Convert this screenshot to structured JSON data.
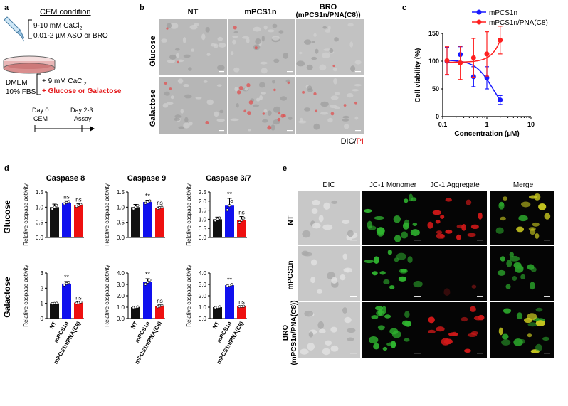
{
  "panel_letters": {
    "a": "a",
    "b": "b",
    "c": "c",
    "d": "d",
    "e": "e"
  },
  "panel_a": {
    "condition_title": "CEM condition",
    "cacl2": "9-10 mM CaCl",
    "cacl2_sub": "2",
    "aso": "0.01-2 µM ASO or BRO",
    "dmem": "DMEM",
    "fbs": "10% FBS",
    "plus_cacl2": "+ 9 mM CaCl",
    "plus_cacl2_sub": "2",
    "plus_sugar": "+ Glucose or Galactose",
    "day0": "Day 0",
    "day0_sub": "CEM",
    "day23": "Day 2-3",
    "day23_sub": "Assay",
    "colors": {
      "red": "#e31a1c"
    }
  },
  "panel_b": {
    "cols": [
      "NT",
      "mPCS1n",
      "BRO"
    ],
    "col3_sub": "(mPCS1n/PNA(C8))",
    "rows": [
      "Glucose",
      "Galactose"
    ],
    "legend_dic": "DIC/",
    "legend_pi": "PI"
  },
  "chart_data": [
    {
      "type": "line",
      "panel": "c",
      "xlabel": "Concentration (µM)",
      "ylabel": "Cell viability (%)",
      "xscale": "log",
      "xlim": [
        0.1,
        10
      ],
      "ylim": [
        0,
        150
      ],
      "xticks": [
        "0.1",
        "1",
        "10"
      ],
      "yticks": [
        "0",
        "50",
        "100",
        "150"
      ],
      "legend_placement": "top",
      "series": [
        {
          "name": "mPCS1n",
          "color": "#1a1aff",
          "x": [
            0.125,
            0.25,
            0.5,
            1,
            2
          ],
          "y": [
            100,
            112,
            72,
            70,
            30
          ],
          "err": [
            25,
            14,
            18,
            20,
            8
          ]
        },
        {
          "name": "mPCS1n/PNA(C8)",
          "color": "#ff2020",
          "x": [
            0.125,
            0.25,
            0.5,
            1,
            2
          ],
          "y": [
            101,
            97,
            106,
            113,
            138
          ],
          "err": [
            25,
            30,
            35,
            40,
            25
          ]
        }
      ]
    },
    {
      "type": "bar",
      "panel": "d",
      "row": "Glucose",
      "title": "Caspase 8",
      "categories": [
        "NT",
        "mPCS1n",
        "mPCS1n/PNA(C8)"
      ],
      "values": [
        1.0,
        1.15,
        1.06
      ],
      "err": [
        0.1,
        0.06,
        0.05
      ],
      "sig": [
        "",
        "ns",
        "ns"
      ],
      "ylim": [
        0,
        1.5
      ],
      "yticks": [
        "0.0",
        "0.5",
        "1.0",
        "1.5"
      ],
      "ylabel": "Relative caspase activity"
    },
    {
      "type": "bar",
      "panel": "d",
      "row": "Glucose",
      "title": "Caspase 9",
      "categories": [
        "NT",
        "mPCS1n",
        "mPCS1n/PNA(C8)"
      ],
      "values": [
        1.0,
        1.17,
        0.98
      ],
      "err": [
        0.09,
        0.06,
        0.03
      ],
      "sig": [
        "",
        "**",
        "ns"
      ],
      "ylim": [
        0,
        1.5
      ],
      "yticks": [
        "0.0",
        "0.5",
        "1.0",
        "1.5"
      ],
      "ylabel": "Relative caspase activity"
    },
    {
      "type": "bar",
      "panel": "d",
      "row": "Glucose",
      "title": "Caspase 3/7",
      "categories": [
        "NT",
        "mPCS1n",
        "mPCS1n/PNA(C8)"
      ],
      "values": [
        1.0,
        1.75,
        0.95
      ],
      "err": [
        0.12,
        0.4,
        0.2
      ],
      "sig": [
        "",
        "**",
        "ns"
      ],
      "ylim": [
        0,
        2.5
      ],
      "yticks": [
        "0.0",
        "0.5",
        "1.0",
        "1.5",
        "2.0",
        "2.5"
      ],
      "ylabel": "Relative caspase activity"
    },
    {
      "type": "bar",
      "panel": "d",
      "row": "Galactose",
      "title": "",
      "categories": [
        "NT",
        "mPCS1n",
        "mPCS1n/PNA(C8)"
      ],
      "values": [
        1.0,
        2.3,
        1.05
      ],
      "err": [
        0.02,
        0.14,
        0.06
      ],
      "sig": [
        "",
        "**",
        "ns"
      ],
      "ylim": [
        0,
        3
      ],
      "yticks": [
        "0",
        "1",
        "2",
        "3"
      ],
      "ylabel": "Relative caspase activity"
    },
    {
      "type": "bar",
      "panel": "d",
      "row": "Galactose",
      "title": "",
      "categories": [
        "NT",
        "mPCS1n",
        "mPCS1n/PNA(C8)"
      ],
      "values": [
        1.0,
        3.2,
        1.1
      ],
      "err": [
        0.05,
        0.3,
        0.1
      ],
      "sig": [
        "",
        "**",
        "ns"
      ],
      "ylim": [
        0,
        4
      ],
      "yticks": [
        "0.0",
        "1.0",
        "2.0",
        "3.0",
        "4.0"
      ],
      "ylabel": "Relative caspase activity"
    },
    {
      "type": "bar",
      "panel": "d",
      "row": "Galactose",
      "title": "",
      "categories": [
        "NT",
        "mPCS1n",
        "mPCS1n/PNA(C8)"
      ],
      "values": [
        1.0,
        2.93,
        1.07
      ],
      "err": [
        0.06,
        0.1,
        0.03
      ],
      "sig": [
        "",
        "**",
        "ns"
      ],
      "ylim": [
        0,
        4
      ],
      "yticks": [
        "0.0",
        "1.0",
        "2.0",
        "3.0",
        "4.0"
      ],
      "ylabel": "Relative caspase activity"
    }
  ],
  "panel_d": {
    "row_labels": [
      "Glucose",
      "Galactose"
    ],
    "bar_colors": [
      "#111111",
      "#1010ee",
      "#ee1010"
    ]
  },
  "panel_e": {
    "cols": [
      "DIC",
      "JC-1 Monomer",
      "JC-1 Aggregate",
      "Merge"
    ],
    "rows": [
      "NT",
      "mPCS1n",
      "BRO"
    ],
    "row3_sub": "(mPCS1n/PNA(C8))"
  }
}
